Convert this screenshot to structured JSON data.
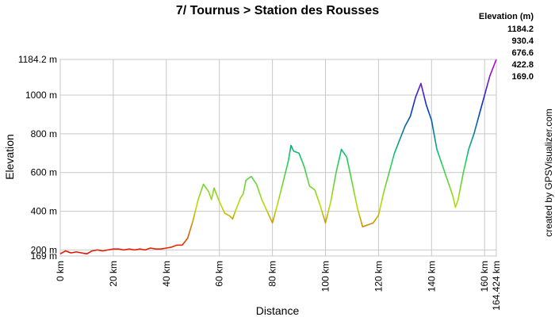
{
  "chart_data": {
    "type": "line",
    "title": "7/ Tournus > Station des Rousses",
    "x_label": "Distance",
    "y_label": "Elevation",
    "credit": "created by GPSVisualizer.com",
    "legend_title": "Elevation (m)",
    "color_scale": [
      {
        "value": 1184.2,
        "label": "1184.2",
        "color": "#cc00cc"
      },
      {
        "value": 930.4,
        "label": "930.4",
        "color": "#0033cc"
      },
      {
        "value": 676.6,
        "label": "676.6",
        "color": "#11cc66"
      },
      {
        "value": 422.8,
        "label": "422.8",
        "color": "#bbdd00"
      },
      {
        "value": 169,
        "label": "169.0",
        "color": "#ee0000"
      }
    ],
    "x": [
      0,
      2,
      4,
      6,
      8,
      10,
      12,
      14,
      16,
      18,
      20,
      22,
      24,
      26,
      28,
      30,
      32,
      34,
      36,
      38,
      40,
      42,
      44,
      46,
      48,
      50,
      52,
      54,
      56,
      57,
      58,
      60,
      62,
      64,
      65,
      66,
      68,
      69,
      70,
      72,
      74,
      76,
      78,
      80,
      82,
      84,
      86,
      87,
      88,
      90,
      92,
      94,
      96,
      98,
      100,
      102,
      104,
      106,
      108,
      110,
      112,
      114,
      116,
      118,
      120,
      122,
      124,
      126,
      128,
      130,
      132,
      134,
      136,
      138,
      140,
      142,
      144,
      146,
      148,
      149,
      150,
      152,
      154,
      156,
      158,
      160,
      162,
      164,
      164.424
    ],
    "values": [
      180,
      195,
      185,
      190,
      185,
      180,
      195,
      200,
      195,
      200,
      205,
      205,
      200,
      205,
      200,
      205,
      200,
      210,
      205,
      205,
      210,
      215,
      225,
      225,
      260,
      350,
      460,
      540,
      500,
      460,
      520,
      450,
      390,
      375,
      360,
      400,
      470,
      490,
      560,
      580,
      540,
      460,
      400,
      340,
      440,
      550,
      660,
      740,
      710,
      700,
      630,
      530,
      510,
      430,
      340,
      450,
      600,
      720,
      680,
      550,
      420,
      320,
      330,
      340,
      380,
      500,
      600,
      700,
      770,
      840,
      890,
      990,
      1060,
      950,
      870,
      720,
      640,
      560,
      480,
      420,
      460,
      600,
      720,
      800,
      900,
      1000,
      1100,
      1170,
      1184.2
    ],
    "xlim": [
      0,
      164.424
    ],
    "ylim": [
      169,
      1184.2
    ],
    "xticks": [
      {
        "value": 0,
        "label": "0 km"
      },
      {
        "value": 20,
        "label": "20 km"
      },
      {
        "value": 40,
        "label": "40 km"
      },
      {
        "value": 60,
        "label": "60 km"
      },
      {
        "value": 80,
        "label": "80 km"
      },
      {
        "value": 100,
        "label": "100 km"
      },
      {
        "value": 120,
        "label": "120 km"
      },
      {
        "value": 140,
        "label": "140 km"
      },
      {
        "value": 160,
        "label": "160 km"
      },
      {
        "value": 164.424,
        "label": "164.424 km"
      }
    ],
    "yticks": [
      {
        "value": 169,
        "label": "169 m"
      },
      {
        "value": 200,
        "label": "200 m"
      },
      {
        "value": 400,
        "label": "400 m"
      },
      {
        "value": 600,
        "label": "600 m"
      },
      {
        "value": 800,
        "label": "800 m"
      },
      {
        "value": 1000,
        "label": "1000 m"
      },
      {
        "value": 1184.2,
        "label": "1184.2 m"
      }
    ],
    "grid": true
  }
}
